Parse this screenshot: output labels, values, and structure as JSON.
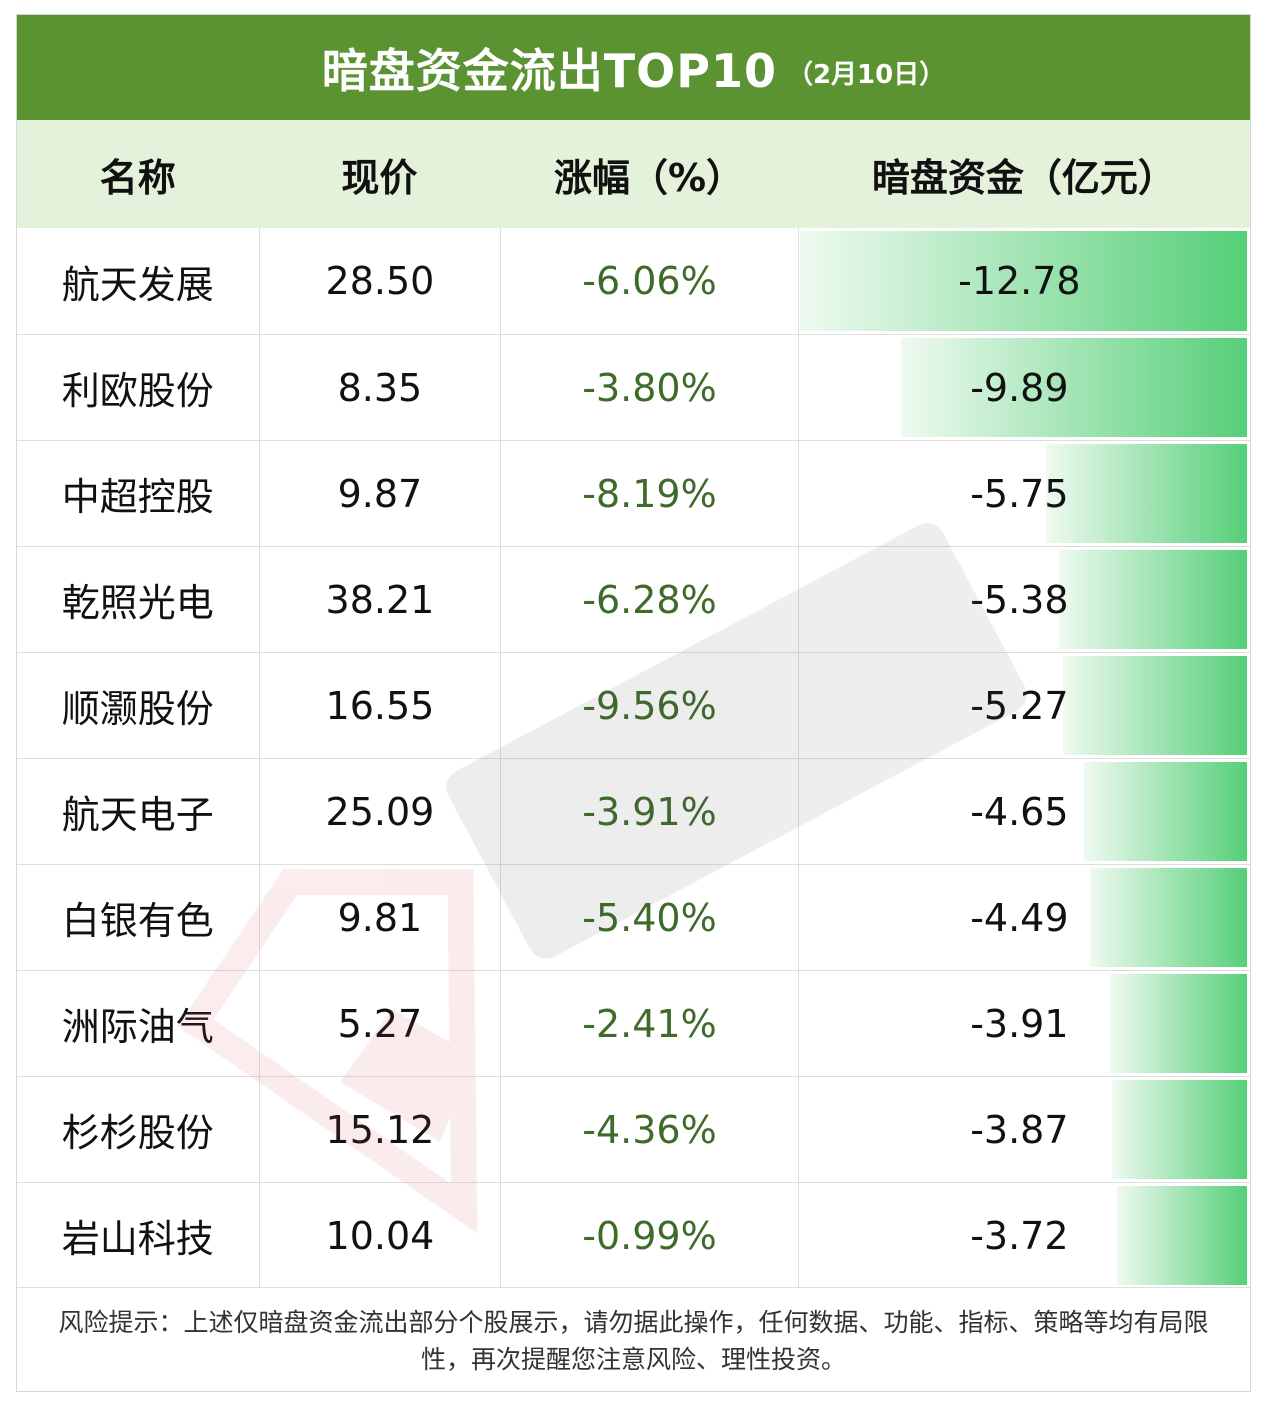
{
  "title": "暗盘资金流出TOP10",
  "title_date": "（2月10日）",
  "headers": [
    "名称",
    "现价",
    "涨幅（%）",
    "暗盘资金（亿元）"
  ],
  "chart_data": {
    "type": "table",
    "columns": [
      "名称",
      "现价",
      "涨幅（%）",
      "暗盘资金（亿元）"
    ],
    "rows": [
      {
        "name": "航天发展",
        "price": "28.50",
        "change": "-6.06%",
        "flow": "-12.78",
        "flow_value": -12.78
      },
      {
        "name": "利欧股份",
        "price": "8.35",
        "change": "-3.80%",
        "flow": "-9.89",
        "flow_value": -9.89
      },
      {
        "name": "中超控股",
        "price": "9.87",
        "change": "-8.19%",
        "flow": "-5.75",
        "flow_value": -5.75
      },
      {
        "name": "乾照光电",
        "price": "38.21",
        "change": "-6.28%",
        "flow": "-5.38",
        "flow_value": -5.38
      },
      {
        "name": "顺灏股份",
        "price": "16.55",
        "change": "-9.56%",
        "flow": "-5.27",
        "flow_value": -5.27
      },
      {
        "name": "航天电子",
        "price": "25.09",
        "change": "-3.91%",
        "flow": "-4.65",
        "flow_value": -4.65
      },
      {
        "name": "白银有色",
        "price": "9.81",
        "change": "-5.40%",
        "flow": "-4.49",
        "flow_value": -4.49
      },
      {
        "name": "洲际油气",
        "price": "5.27",
        "change": "-2.41%",
        "flow": "-3.91",
        "flow_value": -3.91
      },
      {
        "name": "杉杉股份",
        "price": "15.12",
        "change": "-4.36%",
        "flow": "-3.87",
        "flow_value": -3.87
      },
      {
        "name": "岩山科技",
        "price": "10.04",
        "change": "-0.99%",
        "flow": "-3.72",
        "flow_value": -3.72
      }
    ]
  },
  "footer": "风险提示：上述仅暗盘资金流出部分个股展示，请勿据此操作，任何数据、功能、指标、策略等均有局限性，再次提醒您注意风险、理性投资。",
  "colors": {
    "title_bg": "#5b9232",
    "header_bg": "#e4f2db",
    "bar": "#55cf78",
    "pct_text": "#3e6b2a"
  },
  "watermark_icon": "logo-watermark-icon"
}
